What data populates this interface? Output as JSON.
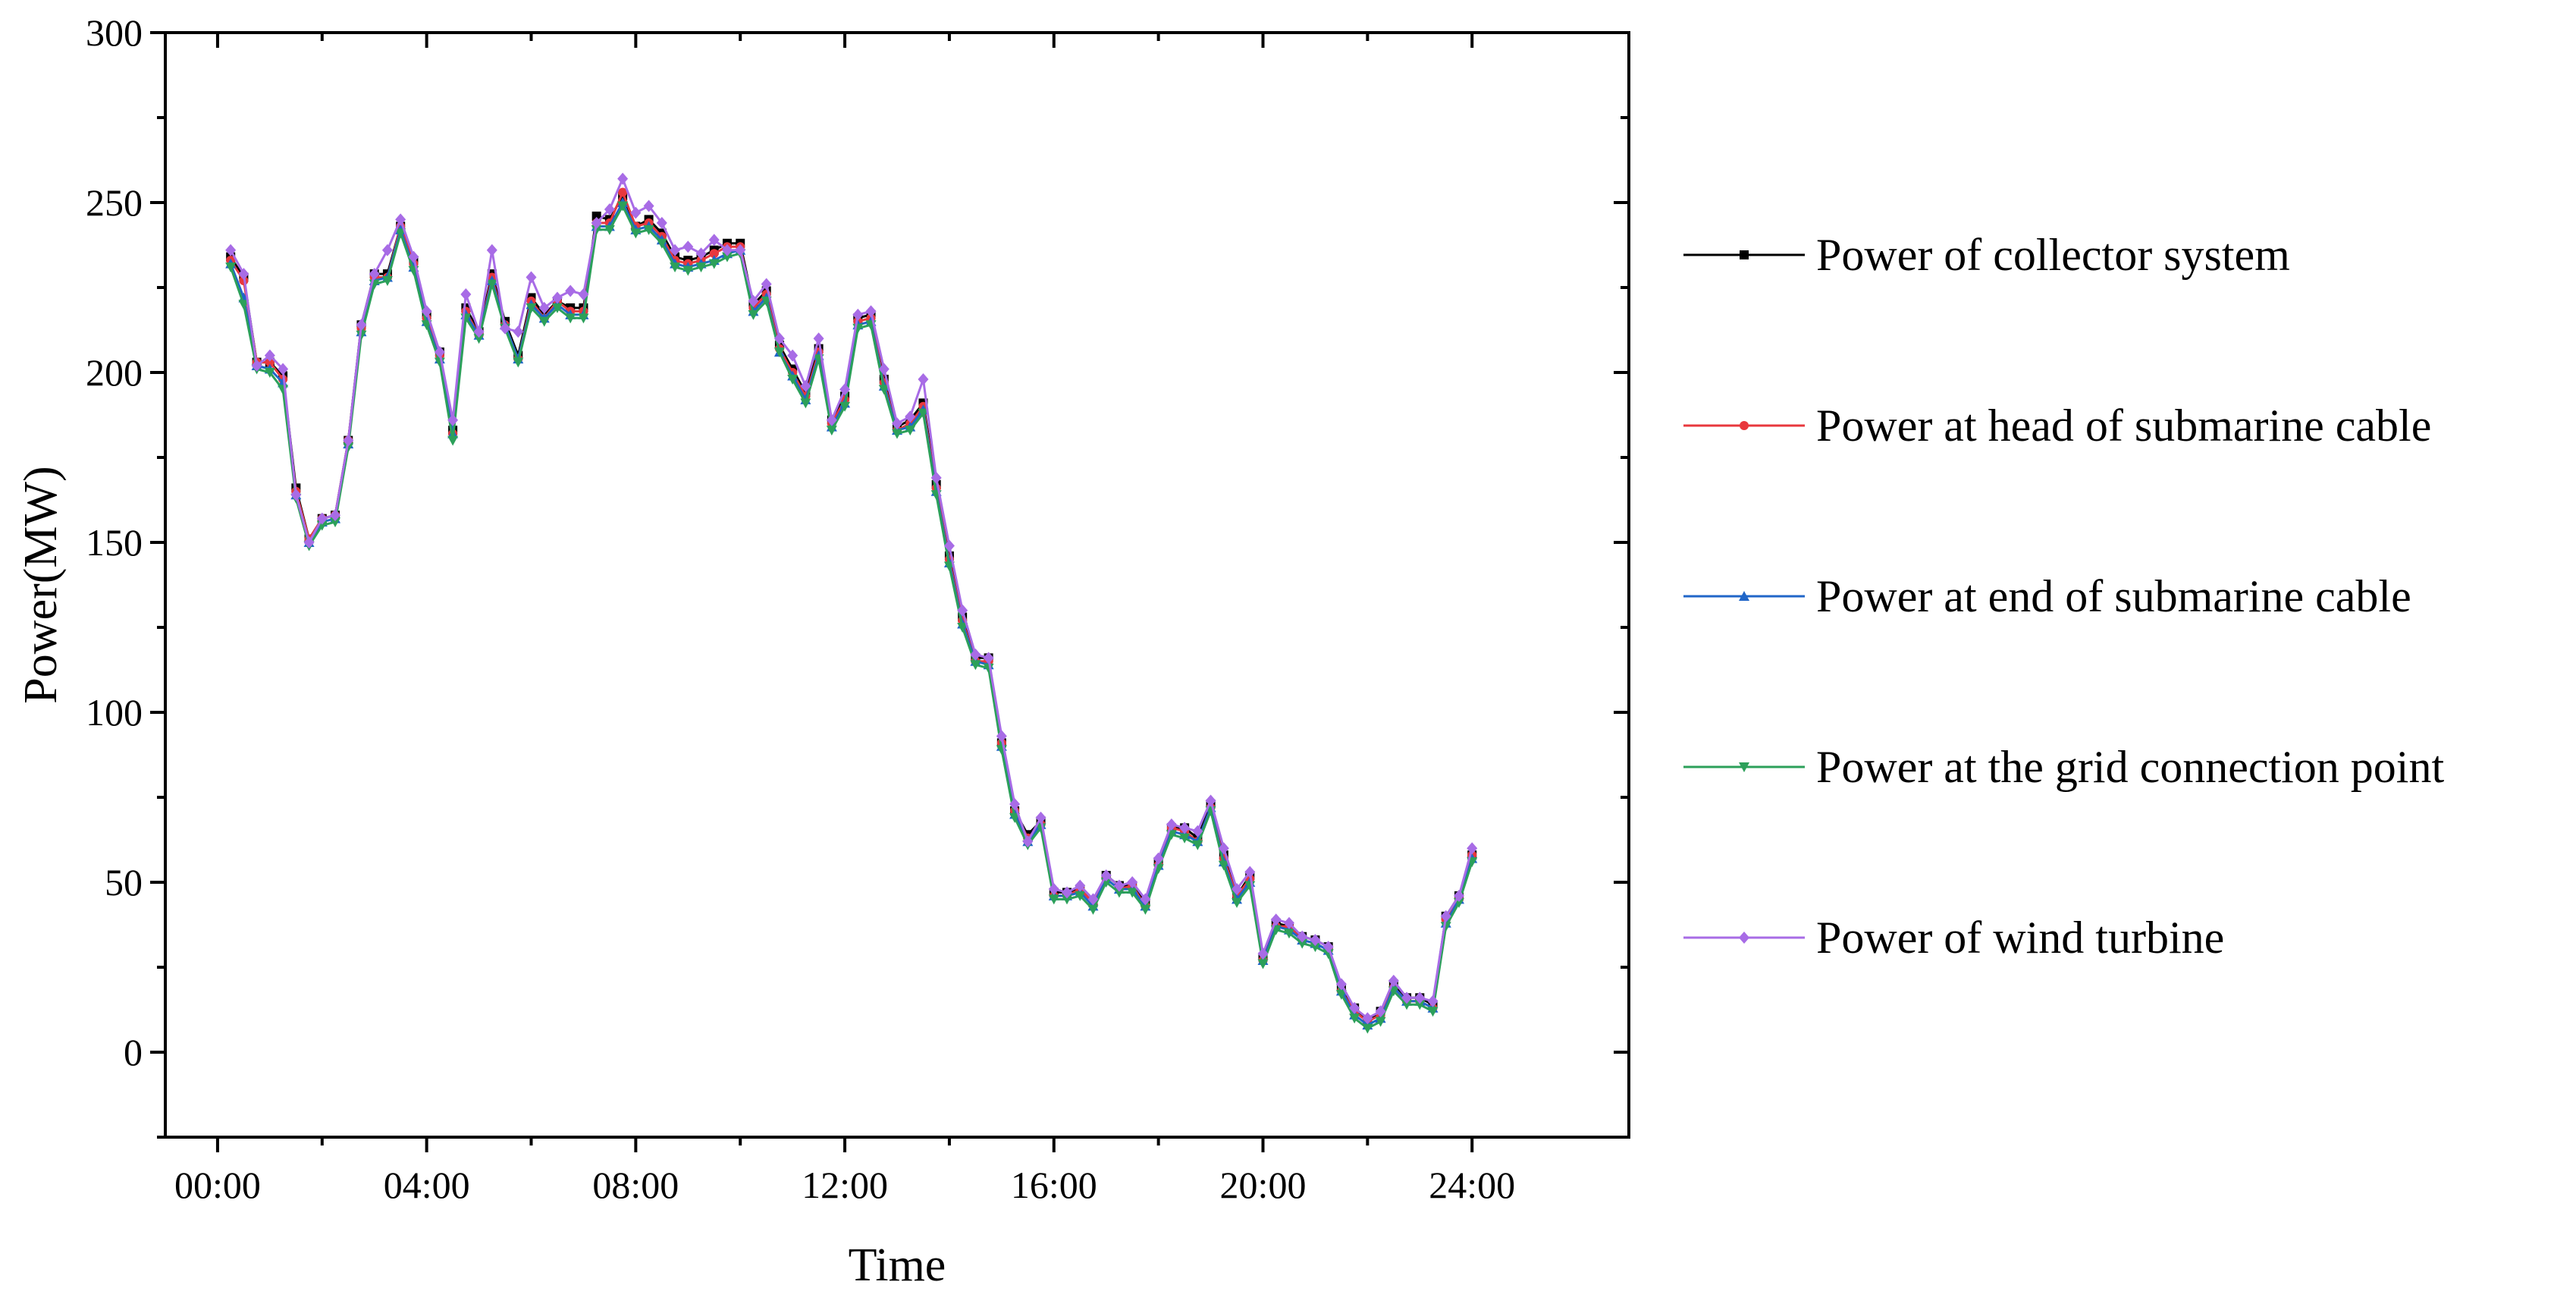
{
  "chart_data": {
    "type": "line",
    "title": "",
    "xlabel": "Time",
    "ylabel": "Power(MW)",
    "ylim": [
      -25,
      300
    ],
    "xlim": [
      -1,
      27
    ],
    "yticks": [
      0,
      50,
      100,
      150,
      200,
      250,
      300
    ],
    "xticks": [
      {
        "value": 0,
        "label": "00:00"
      },
      {
        "value": 4,
        "label": "04:00"
      },
      {
        "value": 8,
        "label": "08:00"
      },
      {
        "value": 12,
        "label": "12:00"
      },
      {
        "value": 16,
        "label": "16:00"
      },
      {
        "value": 20,
        "label": "20:00"
      },
      {
        "value": 24,
        "label": "24:00"
      }
    ],
    "grid": false,
    "legend_position": "right",
    "interval_hours": 0.25,
    "x_start_hours": 0.25,
    "series": [
      {
        "name": "Power of collector system",
        "color": "#000000",
        "marker": "square",
        "values": [
          234,
          228,
          203,
          203,
          199,
          166,
          151,
          157,
          158,
          180,
          214,
          229,
          229,
          243,
          233,
          217,
          206,
          183,
          219,
          212,
          229,
          215,
          205,
          222,
          217,
          221,
          219,
          219,
          246,
          245,
          252,
          243,
          245,
          241,
          234,
          233,
          234,
          236,
          238,
          238,
          220,
          224,
          208,
          201,
          194,
          207,
          186,
          193,
          216,
          217,
          198,
          184,
          186,
          191,
          167,
          146,
          128,
          116,
          116,
          91,
          71,
          64,
          68,
          47,
          47,
          48,
          44,
          52,
          49,
          49,
          44,
          56,
          66,
          66,
          63,
          73,
          58,
          46,
          52,
          28,
          38,
          37,
          34,
          33,
          31,
          19,
          13,
          9,
          12,
          20,
          16,
          16,
          14,
          40,
          46,
          58
        ]
      },
      {
        "name": "Power at head of submarine cable",
        "color": "#e8383d",
        "marker": "circle",
        "values": [
          233,
          227,
          203,
          203,
          198,
          165,
          151,
          157,
          158,
          180,
          213,
          228,
          228,
          243,
          232,
          216,
          205,
          182,
          218,
          211,
          228,
          214,
          204,
          221,
          216,
          221,
          218,
          218,
          244,
          244,
          253,
          243,
          244,
          240,
          233,
          232,
          233,
          235,
          237,
          237,
          219,
          223,
          207,
          200,
          193,
          206,
          185,
          192,
          215,
          216,
          197,
          183,
          185,
          190,
          166,
          145,
          127,
          115,
          115,
          91,
          71,
          63,
          67,
          46,
          46,
          48,
          44,
          51,
          48,
          49,
          43,
          55,
          66,
          65,
          62,
          72,
          57,
          46,
          51,
          27,
          37,
          37,
          33,
          32,
          30,
          18,
          12,
          9,
          11,
          19,
          15,
          15,
          13,
          39,
          45,
          58
        ]
      },
      {
        "name": "Power at end of submarine cable",
        "color": "#2066c8",
        "marker": "triangle-up",
        "values": [
          232,
          222,
          202,
          201,
          197,
          164,
          150,
          156,
          157,
          179,
          212,
          227,
          228,
          242,
          231,
          215,
          204,
          182,
          217,
          211,
          227,
          214,
          204,
          220,
          216,
          220,
          217,
          217,
          243,
          243,
          250,
          242,
          243,
          239,
          232,
          231,
          232,
          233,
          235,
          236,
          218,
          222,
          206,
          199,
          192,
          205,
          184,
          191,
          214,
          215,
          196,
          183,
          184,
          189,
          165,
          144,
          126,
          115,
          114,
          90,
          70,
          62,
          67,
          46,
          46,
          47,
          43,
          51,
          48,
          48,
          43,
          55,
          65,
          64,
          62,
          72,
          56,
          45,
          50,
          27,
          37,
          36,
          33,
          32,
          30,
          18,
          11,
          8,
          10,
          19,
          15,
          15,
          13,
          38,
          45,
          57
        ]
      },
      {
        "name": "Power at the grid connection point",
        "color": "#2ca05a",
        "marker": "triangle-down",
        "values": [
          231,
          220,
          201,
          200,
          195,
          163,
          149,
          155,
          156,
          178,
          211,
          226,
          227,
          241,
          230,
          214,
          203,
          180,
          216,
          210,
          226,
          213,
          203,
          219,
          215,
          219,
          216,
          216,
          242,
          242,
          249,
          241,
          242,
          238,
          231,
          230,
          231,
          232,
          234,
          235,
          217,
          221,
          206,
          198,
          191,
          204,
          183,
          190,
          213,
          214,
          195,
          182,
          183,
          188,
          164,
          143,
          125,
          114,
          113,
          89,
          69,
          61,
          66,
          45,
          45,
          46,
          42,
          50,
          47,
          47,
          42,
          54,
          64,
          63,
          61,
          71,
          55,
          44,
          49,
          26,
          36,
          35,
          32,
          31,
          29,
          17,
          10,
          7,
          9,
          18,
          14,
          14,
          12,
          37,
          44,
          56
        ]
      },
      {
        "name": "Power of wind turbine",
        "color": "#a86ce6",
        "marker": "diamond",
        "values": [
          236,
          229,
          202,
          205,
          201,
          164,
          150,
          157,
          158,
          180,
          214,
          229,
          236,
          245,
          234,
          218,
          206,
          186,
          223,
          212,
          236,
          213,
          212,
          228,
          219,
          222,
          224,
          223,
          244,
          248,
          257,
          247,
          249,
          244,
          236,
          237,
          235,
          239,
          236,
          236,
          221,
          226,
          210,
          205,
          196,
          210,
          186,
          195,
          217,
          218,
          201,
          185,
          187,
          198,
          169,
          149,
          130,
          117,
          116,
          93,
          73,
          62,
          69,
          48,
          47,
          49,
          45,
          52,
          49,
          50,
          45,
          57,
          67,
          66,
          65,
          74,
          60,
          48,
          53,
          29,
          39,
          38,
          34,
          33,
          31,
          20,
          13,
          10,
          12,
          21,
          16,
          16,
          15,
          40,
          46,
          60
        ]
      }
    ]
  }
}
